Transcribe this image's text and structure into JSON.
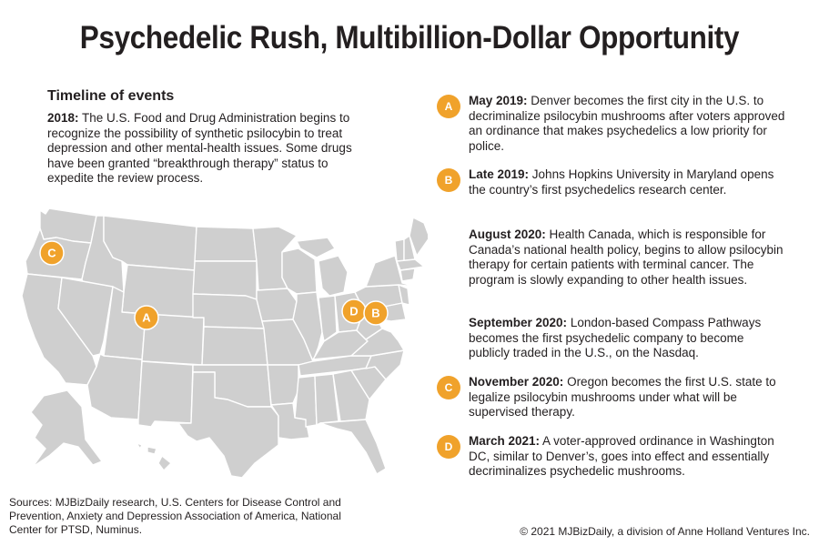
{
  "title": "Psychedelic Rush, Multibillion-Dollar Opportunity",
  "timeline_heading": "Timeline of events",
  "intro": {
    "date": "2018:",
    "text": " The U.S. Food and Drug Administration begins to recognize the possibility of synthetic psilocybin to treat depression and other mental-health issues. Some drugs have been granted “breakthrough therapy” status to expedite the review process."
  },
  "map": {
    "region": "United States",
    "fill_color": "#cfcfcf",
    "markers": [
      {
        "letter": "C",
        "location": "Oregon"
      },
      {
        "letter": "A",
        "location": "Denver, Colorado"
      },
      {
        "letter": "D",
        "location": "Washington DC"
      },
      {
        "letter": "B",
        "location": "Maryland"
      }
    ]
  },
  "events": [
    {
      "badge": "A",
      "date": "May 2019:",
      "text": " Denver becomes the first city in the U.S. to decriminalize psilocybin mushrooms after voters approved an ordinance that makes psychedelics a low priority for police."
    },
    {
      "badge": "B",
      "date": "Late 2019:",
      "text": " Johns Hopkins University in Maryland opens the country’s first psychedelics research center."
    },
    {
      "badge": "",
      "date": "August 2020:",
      "text": " Health Canada, which is responsible for Canada’s national health policy, begins to allow psilocybin therapy for certain patients with terminal cancer. The program is slowly expanding to other health issues."
    },
    {
      "badge": "",
      "date": "September 2020:",
      "text": " London-based Compass Pathways becomes the first psychedelic company to become publicly traded in the U.S., on the Nasdaq."
    },
    {
      "badge": "C",
      "date": "November 2020:",
      "text": " Oregon becomes the first U.S. state to legalize psilocybin mushrooms under what will be supervised therapy."
    },
    {
      "badge": "D",
      "date": "March 2021:",
      "text": " A voter-approved ordinance in Washington DC, similar to Denver’s, goes into effect and essentially decriminalizes psychedelic mushrooms."
    }
  ],
  "sources": "Sources: MJBizDaily research, U.S. Centers for Disease Control and Prevention, Anxiety and Depression Association of America, National Center for PTSD, Numinus.",
  "copyright": "© 2021 MJBizDaily, a division of Anne Holland Ventures Inc.",
  "colors": {
    "accent": "#f0a22b",
    "map_fill": "#cfcfcf",
    "text": "#231f20",
    "background": "#ffffff"
  }
}
